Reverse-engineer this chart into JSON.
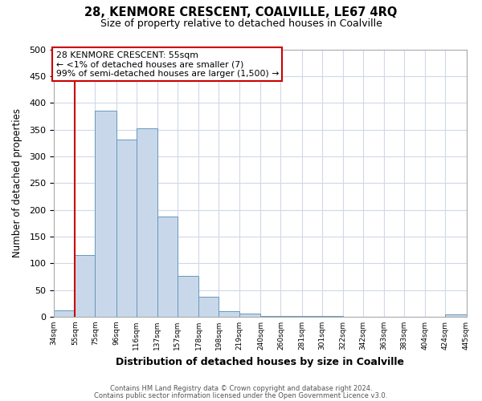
{
  "title": "28, KENMORE CRESCENT, COALVILLE, LE67 4RQ",
  "subtitle": "Size of property relative to detached houses in Coalville",
  "xlabel": "Distribution of detached houses by size in Coalville",
  "ylabel": "Number of detached properties",
  "bar_edges": [
    34,
    55,
    75,
    96,
    116,
    137,
    157,
    178,
    198,
    219,
    240,
    260,
    281,
    301,
    322,
    342,
    363,
    383,
    404,
    424,
    445
  ],
  "bar_heights": [
    12,
    116,
    385,
    331,
    352,
    188,
    76,
    38,
    10,
    6,
    2,
    1,
    1,
    1,
    0,
    0,
    0,
    0,
    0,
    5
  ],
  "bar_color": "#c8d8ea",
  "bar_edge_color": "#6699bb",
  "ylim": [
    0,
    500
  ],
  "yticks": [
    0,
    50,
    100,
    150,
    200,
    250,
    300,
    350,
    400,
    450,
    500
  ],
  "property_line_x": 55,
  "property_line_color": "#cc0000",
  "annotation_box_color": "#cc0000",
  "annotation_text_line1": "28 KENMORE CRESCENT: 55sqm",
  "annotation_text_line2": "← <1% of detached houses are smaller (7)",
  "annotation_text_line3": "99% of semi-detached houses are larger (1,500) →",
  "footer_line1": "Contains HM Land Registry data © Crown copyright and database right 2024.",
  "footer_line2": "Contains public sector information licensed under the Open Government Licence v3.0.",
  "fig_background_color": "#ffffff",
  "plot_background_color": "#ffffff",
  "grid_color": "#d0d8e8",
  "xtick_labels": [
    "34sqm",
    "55sqm",
    "75sqm",
    "96sqm",
    "116sqm",
    "137sqm",
    "157sqm",
    "178sqm",
    "198sqm",
    "219sqm",
    "240sqm",
    "260sqm",
    "281sqm",
    "301sqm",
    "322sqm",
    "342sqm",
    "363sqm",
    "383sqm",
    "404sqm",
    "424sqm",
    "445sqm"
  ]
}
